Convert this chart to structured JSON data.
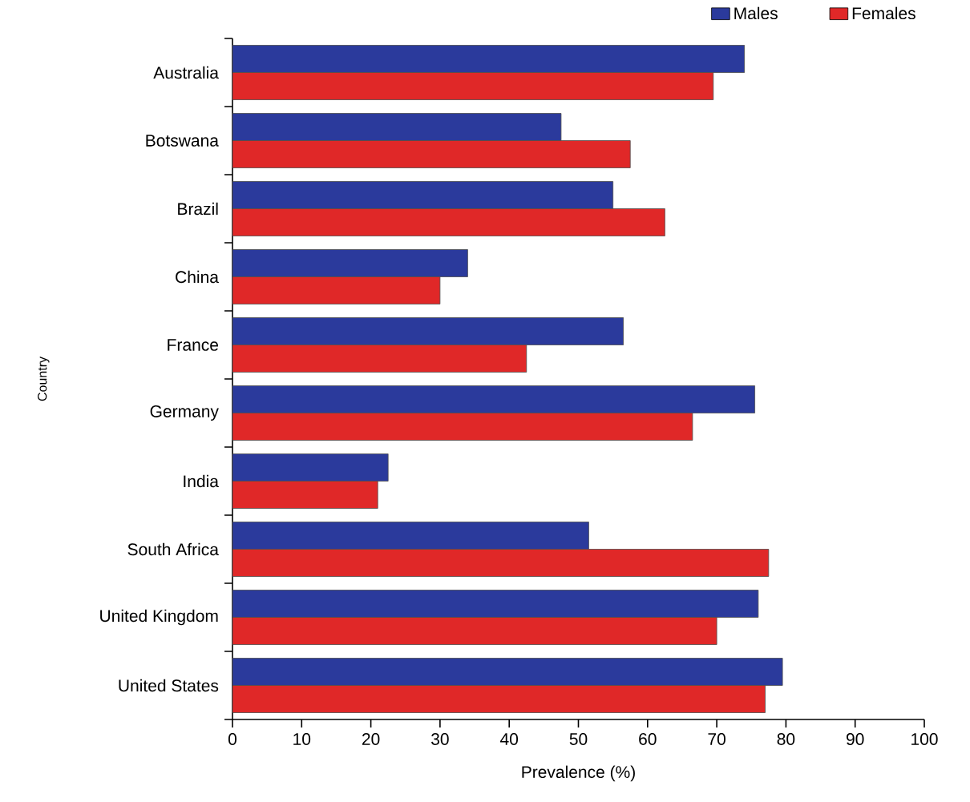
{
  "chart_data": {
    "type": "bar",
    "orientation": "horizontal",
    "xlabel": "Prevalence (%)",
    "ylabel": "Country",
    "categories": [
      "Australia",
      "Botswana",
      "Brazil",
      "China",
      "France",
      "Germany",
      "India",
      "South Africa",
      "United Kingdom",
      "United States"
    ],
    "series": [
      {
        "name": "Males",
        "color": "#2b3a9c",
        "values": [
          74,
          47.5,
          55,
          34,
          56.5,
          75.5,
          22.5,
          51.5,
          76,
          79.5
        ]
      },
      {
        "name": "Females",
        "color": "#e02828",
        "values": [
          69.5,
          57.5,
          62.5,
          30,
          42.5,
          66.5,
          21,
          77.5,
          70,
          77
        ]
      }
    ],
    "xlim": [
      0,
      100
    ],
    "xticks": [
      0,
      10,
      20,
      30,
      40,
      50,
      60,
      70,
      80,
      90,
      100
    ],
    "grid": false,
    "legend": "top right"
  }
}
